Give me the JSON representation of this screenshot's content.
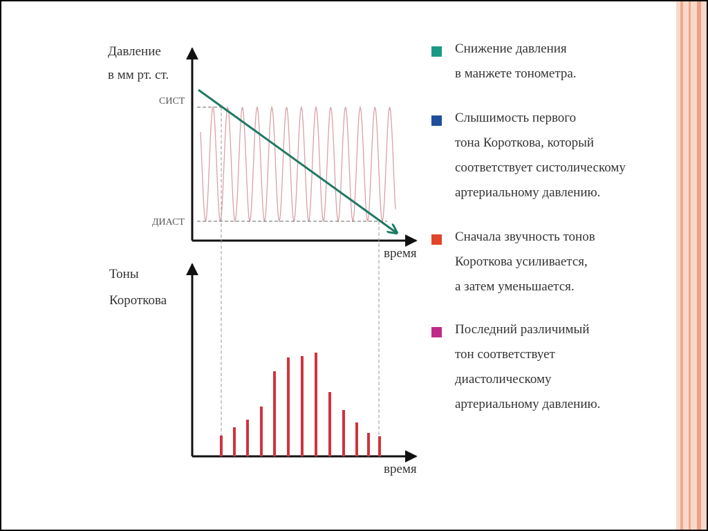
{
  "slide": {
    "pressure_chart": {
      "axis_label": [
        "Давление",
        "в мм рт. ст."
      ],
      "sys_label": "СИСТ",
      "dia_label": "ДИАСТ",
      "x_label": "время"
    },
    "tones_chart": {
      "axis_label": [
        "Тоны",
        "Короткова"
      ],
      "x_label": "время"
    },
    "legend": [
      {
        "color": "#1a9a86",
        "lines": [
          "Снижение давления",
          "в манжете тонометра."
        ]
      },
      {
        "color": "#1f4e9c",
        "lines": [
          "Слышимость первого",
          "тона Короткова, который",
          "соответствует систолическому",
          "артериальному давлению."
        ]
      },
      {
        "color": "#e0452a",
        "lines": [
          "Сначала звучность тонов",
          "Короткова усиливается,",
          "а затем уменьшается."
        ]
      },
      {
        "color": "#c02a88",
        "lines": [
          "Последний различимый",
          "тон соответствует",
          "диастолическому",
          "артериальному давлению."
        ]
      }
    ]
  }
}
